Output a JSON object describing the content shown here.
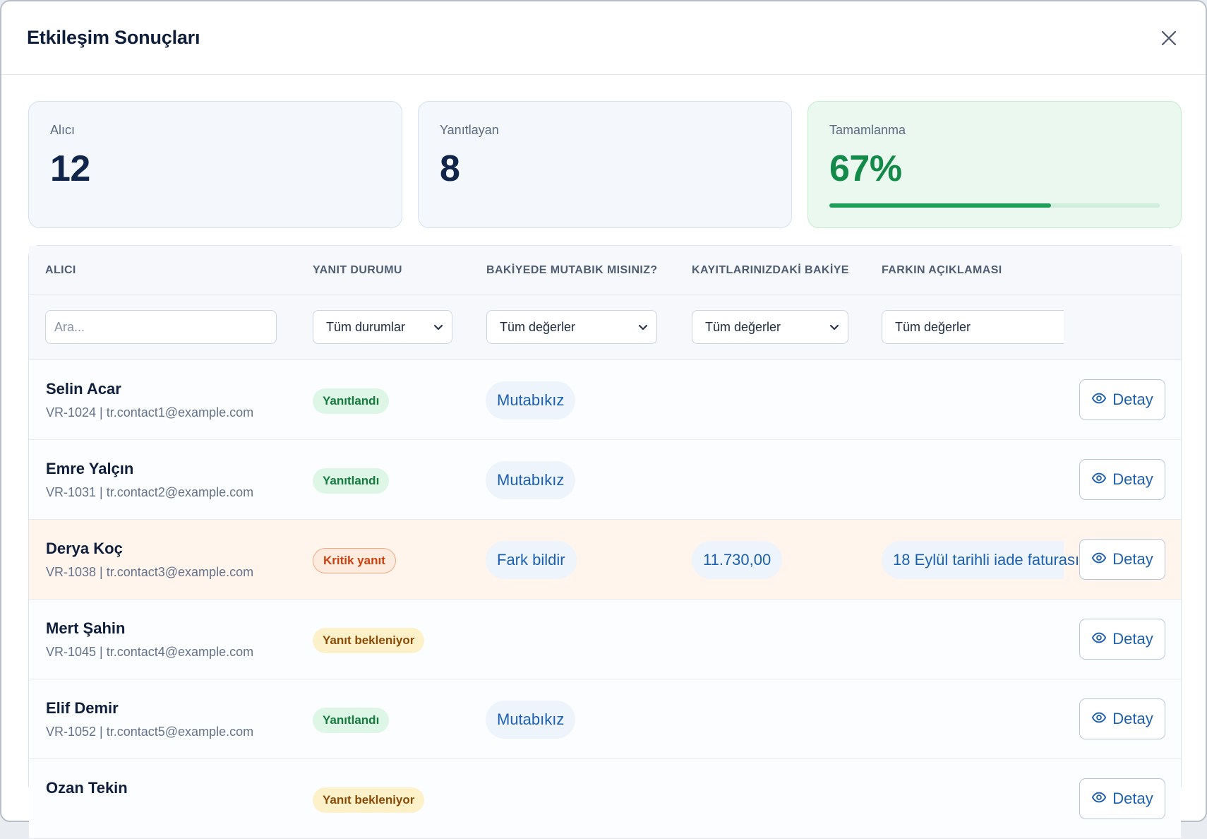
{
  "modal": {
    "title": "Etkileşim Sonuçları"
  },
  "stats": {
    "recipients": {
      "label": "Alıcı",
      "value": "12"
    },
    "responders": {
      "label": "Yanıtlayan",
      "value": "8"
    },
    "completion": {
      "label": "Tamamlanma",
      "value": "67%",
      "progress": 0.67
    }
  },
  "colors": {
    "accent": "#1d5fb0",
    "success": "#1e9e58",
    "critical": "#c9410e",
    "pending": "#8a4a08"
  },
  "table": {
    "headers": {
      "recipient": "ALICI",
      "status": "YANIT DURUMU",
      "agreement": "BAKİYEDE MUTABIK MISINIZ?",
      "balance": "KAYITLARINIZDAKİ BAKİYE",
      "explanation": "FARKIN AÇIKLAMASI"
    },
    "filters": {
      "search_placeholder": "Ara...",
      "status": "Tüm durumlar",
      "agreement": "Tüm değerler",
      "balance": "Tüm değerler",
      "explanation": "Tüm değerler"
    },
    "rows": [
      {
        "name": "Selin Acar",
        "sub": "VR-1024 | tr.contact1@example.com",
        "status": "Yanıtlandı",
        "agreement": "Mutabıkız",
        "detail": "Detay"
      },
      {
        "name": "Emre Yalçın",
        "sub": "VR-1031 | tr.contact2@example.com",
        "status": "Yanıtlandı",
        "agreement": "Mutabıkız",
        "detail": "Detay"
      },
      {
        "name": "Derya Koç",
        "sub": "VR-1038 | tr.contact3@example.com",
        "status": "Kritik yanıt",
        "agreement": "Fark bildir",
        "balance": "11.730,00",
        "explanation": "18 Eylül tarihli iade faturası",
        "detail": "Detay"
      },
      {
        "name": "Mert Şahin",
        "sub": "VR-1045 | tr.contact4@example.com",
        "status": "Yanıt bekleniyor",
        "detail": "Detay"
      },
      {
        "name": "Elif Demir",
        "sub": "VR-1052 | tr.contact5@example.com",
        "status": "Yanıtlandı",
        "agreement": "Mutabıkız",
        "detail": "Detay"
      },
      {
        "name": "Ozan Tekin",
        "sub": "",
        "status": "Yanıt bekleniyor",
        "detail": "Detay"
      }
    ]
  }
}
